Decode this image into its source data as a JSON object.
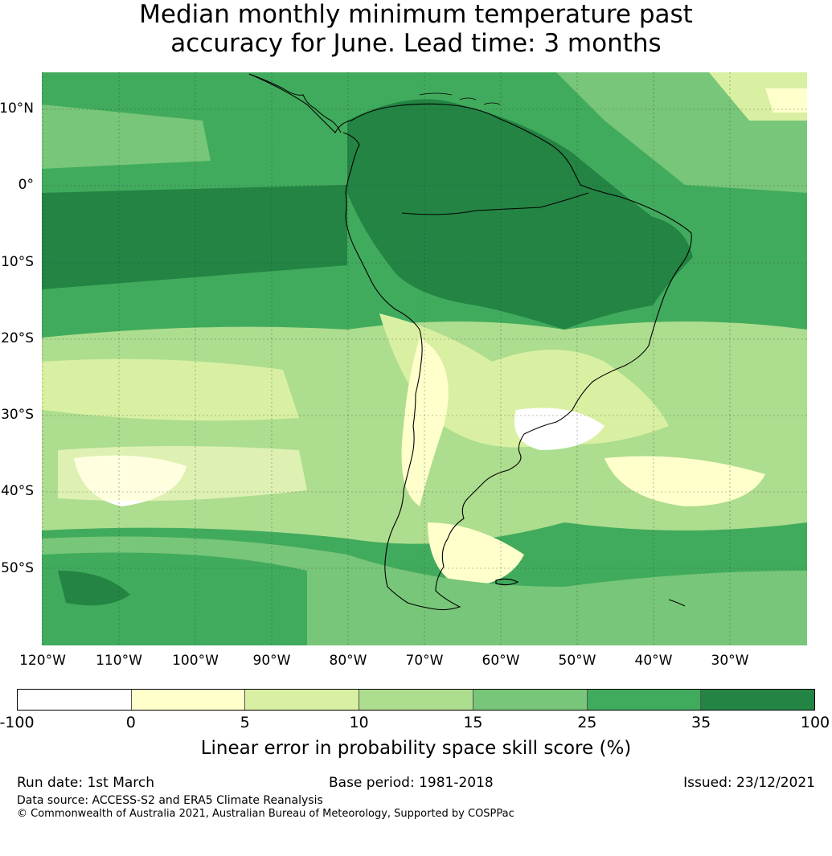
{
  "title": {
    "line1": "Median monthly minimum temperature past",
    "line2": "accuracy for June. Lead time: 3 months"
  },
  "map": {
    "lat_labels": [
      "10°N",
      "0°",
      "10°S",
      "20°S",
      "30°S",
      "40°S",
      "50°S"
    ],
    "lon_labels": [
      "120°W",
      "110°W",
      "100°W",
      "90°W",
      "80°W",
      "70°W",
      "60°W",
      "50°W",
      "40°W",
      "30°W"
    ]
  },
  "colorbar": {
    "ticks": [
      "-100",
      "0",
      "5",
      "10",
      "15",
      "25",
      "35",
      "100"
    ],
    "colors": [
      "#ffffff",
      "#ffffcc",
      "#d9f0a3",
      "#addd8e",
      "#78c679",
      "#41ab5d",
      "#238443"
    ],
    "label": "Linear error in probability space skill score (%)"
  },
  "footer": {
    "run_date": "Run date: 1st March",
    "base_period": "Base period: 1981-2018",
    "issued": "Issued: 23/12/2021",
    "data_source": "Data source: ACCESS-S2 and ERA5 Climate Reanalysis",
    "copyright": "© Commonwealth of Australia 2021, Australian Bureau of Meteorology, Supported by COSPPac"
  }
}
